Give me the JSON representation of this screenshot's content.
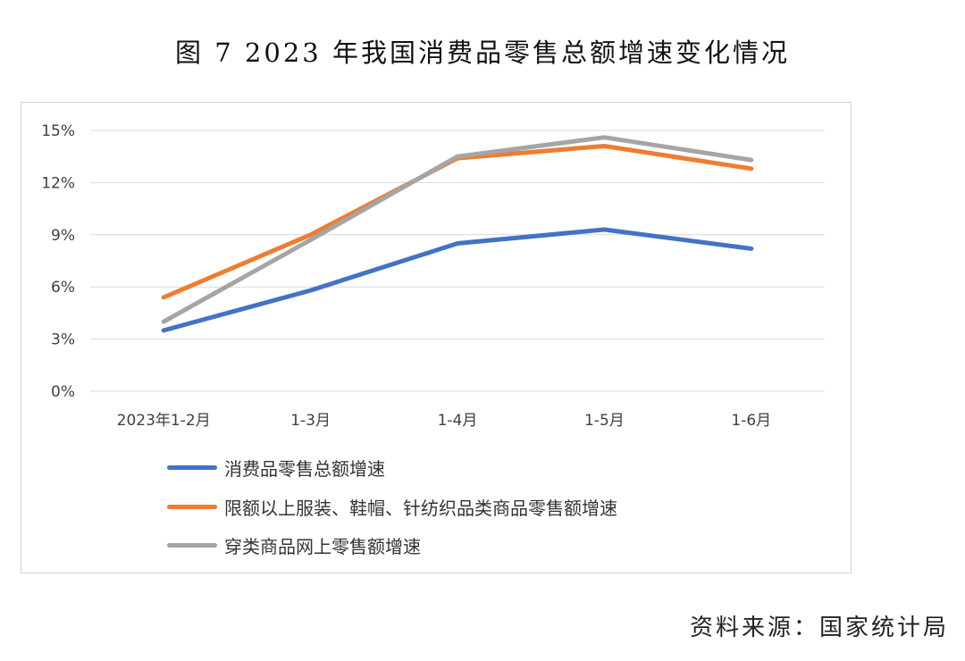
{
  "figure": {
    "title": "图 7   2023 年我国消费品零售总额增速变化情况",
    "source": "资料来源：国家统计局"
  },
  "chart_data": {
    "type": "line",
    "categories": [
      "2023年1-2月",
      "1-3月",
      "1-4月",
      "1-5月",
      "1-6月"
    ],
    "ylim": [
      0,
      15
    ],
    "yticks": [
      0,
      3,
      6,
      9,
      12,
      15
    ],
    "ytick_labels": [
      "0%",
      "3%",
      "6%",
      "9%",
      "12%",
      "15%"
    ],
    "grid": true,
    "legend_position": "bottom-left",
    "series": [
      {
        "name": "消费品零售总额增速",
        "color": "#4472c4",
        "values": [
          3.5,
          5.8,
          8.5,
          9.3,
          8.2
        ]
      },
      {
        "name": "限额以上服装、鞋帽、针纺织品类商品零售额增速",
        "color": "#ed7d31",
        "values": [
          5.4,
          9.0,
          13.4,
          14.1,
          12.8
        ]
      },
      {
        "name": "穿类商品网上零售额增速",
        "color": "#a5a5a5",
        "values": [
          4.0,
          8.7,
          13.5,
          14.6,
          13.3
        ]
      }
    ]
  }
}
